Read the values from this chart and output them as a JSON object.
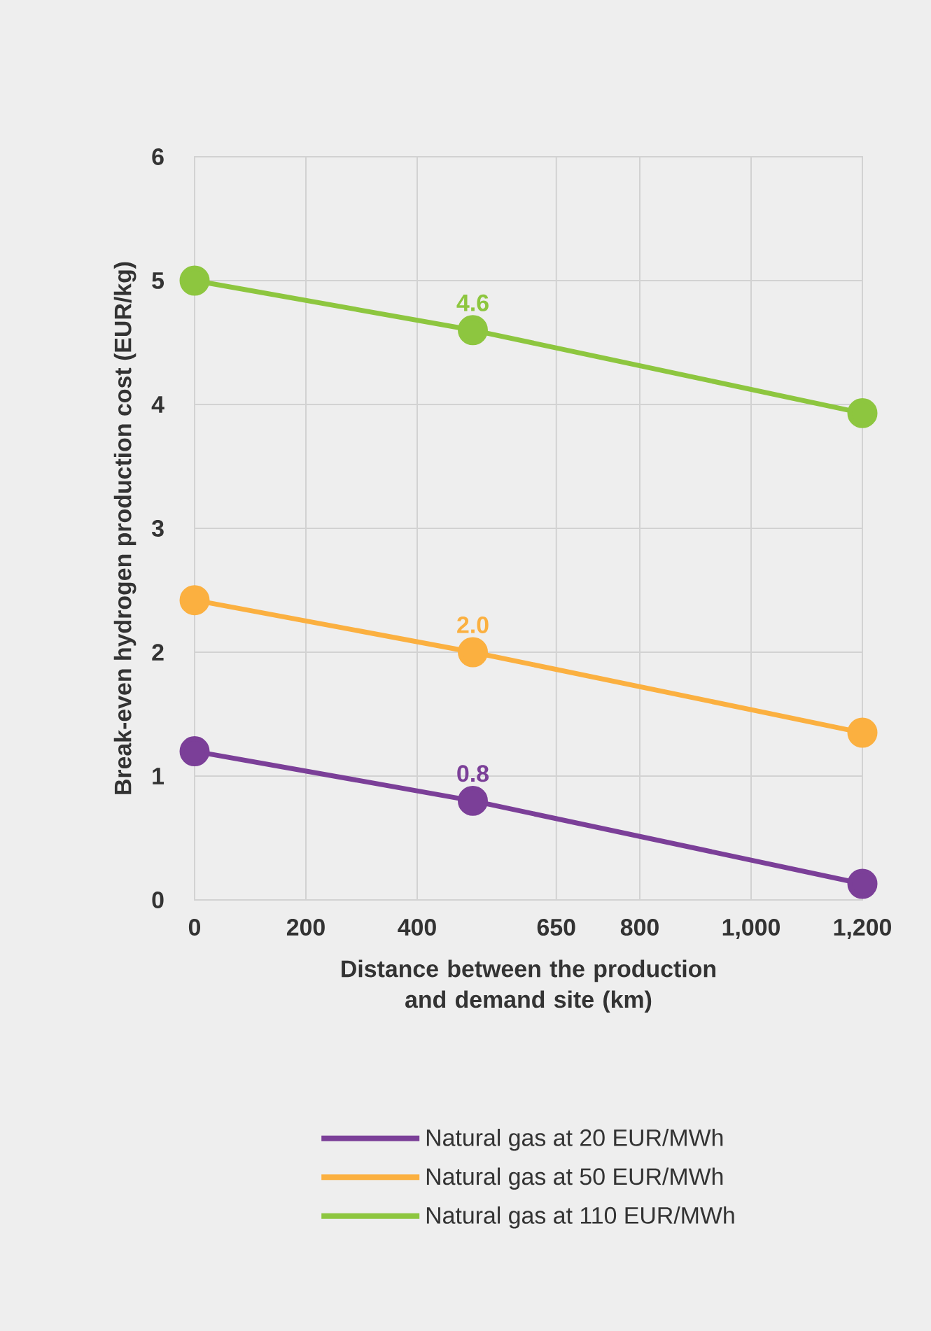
{
  "chart_data": {
    "type": "line",
    "xlabel": "Distance between the production and demand site (km)",
    "ylabel": "Break-even hydrogen production cost (EUR/kg)",
    "x": [
      0,
      500,
      1200
    ],
    "xlim": [
      0,
      1200
    ],
    "xticks": [
      0,
      200,
      400,
      650,
      800,
      {
        "value": 1000,
        "label": "1,000"
      },
      {
        "value": 1200,
        "label": "1,200"
      }
    ],
    "ylim": [
      0,
      6
    ],
    "yticks": [
      0,
      1,
      2,
      3,
      4,
      5,
      6
    ],
    "grid": true,
    "legend": "bottom",
    "marker": "circle",
    "line_style": "solid",
    "series": [
      {
        "name": "Natural gas at 20 EUR/MWh",
        "color": "#7b3f98",
        "values": [
          1.2,
          0.8,
          0.13
        ],
        "value_labels": [
          null,
          "0.8",
          null
        ]
      },
      {
        "name": "Natural gas at 50 EUR/MWh",
        "color": "#fbb040",
        "values": [
          2.42,
          2.0,
          1.35
        ],
        "value_labels": [
          null,
          "2.0",
          null
        ]
      },
      {
        "name": "Natural gas at 110 EUR/MWh",
        "color": "#8dc63f",
        "values": [
          5.0,
          4.6,
          3.93
        ],
        "value_labels": [
          null,
          "4.6",
          null
        ]
      }
    ]
  }
}
